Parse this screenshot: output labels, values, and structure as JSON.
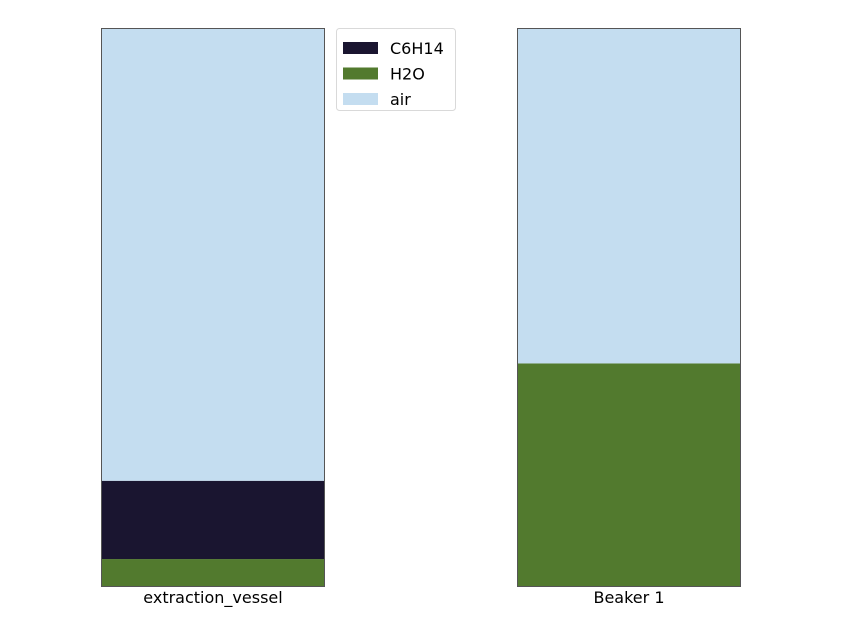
{
  "chart_data": {
    "type": "bar",
    "stacked": true,
    "normalized": true,
    "categories": [
      "extraction_vessel",
      "Beaker 1"
    ],
    "series": [
      {
        "name": "H2O",
        "color": "#527a2e",
        "values": [
          0.05,
          0.4
        ]
      },
      {
        "name": "C6H14",
        "color": "#1a1530",
        "values": [
          0.14,
          0.0
        ]
      },
      {
        "name": "air",
        "color": "#c4ddf0",
        "values": [
          0.81,
          0.6
        ]
      }
    ],
    "legend": {
      "placement": "top-center",
      "order": [
        "C6H14",
        "H2O",
        "air"
      ]
    },
    "ylim": [
      0,
      1
    ],
    "grid": false,
    "axes_visible": false
  }
}
